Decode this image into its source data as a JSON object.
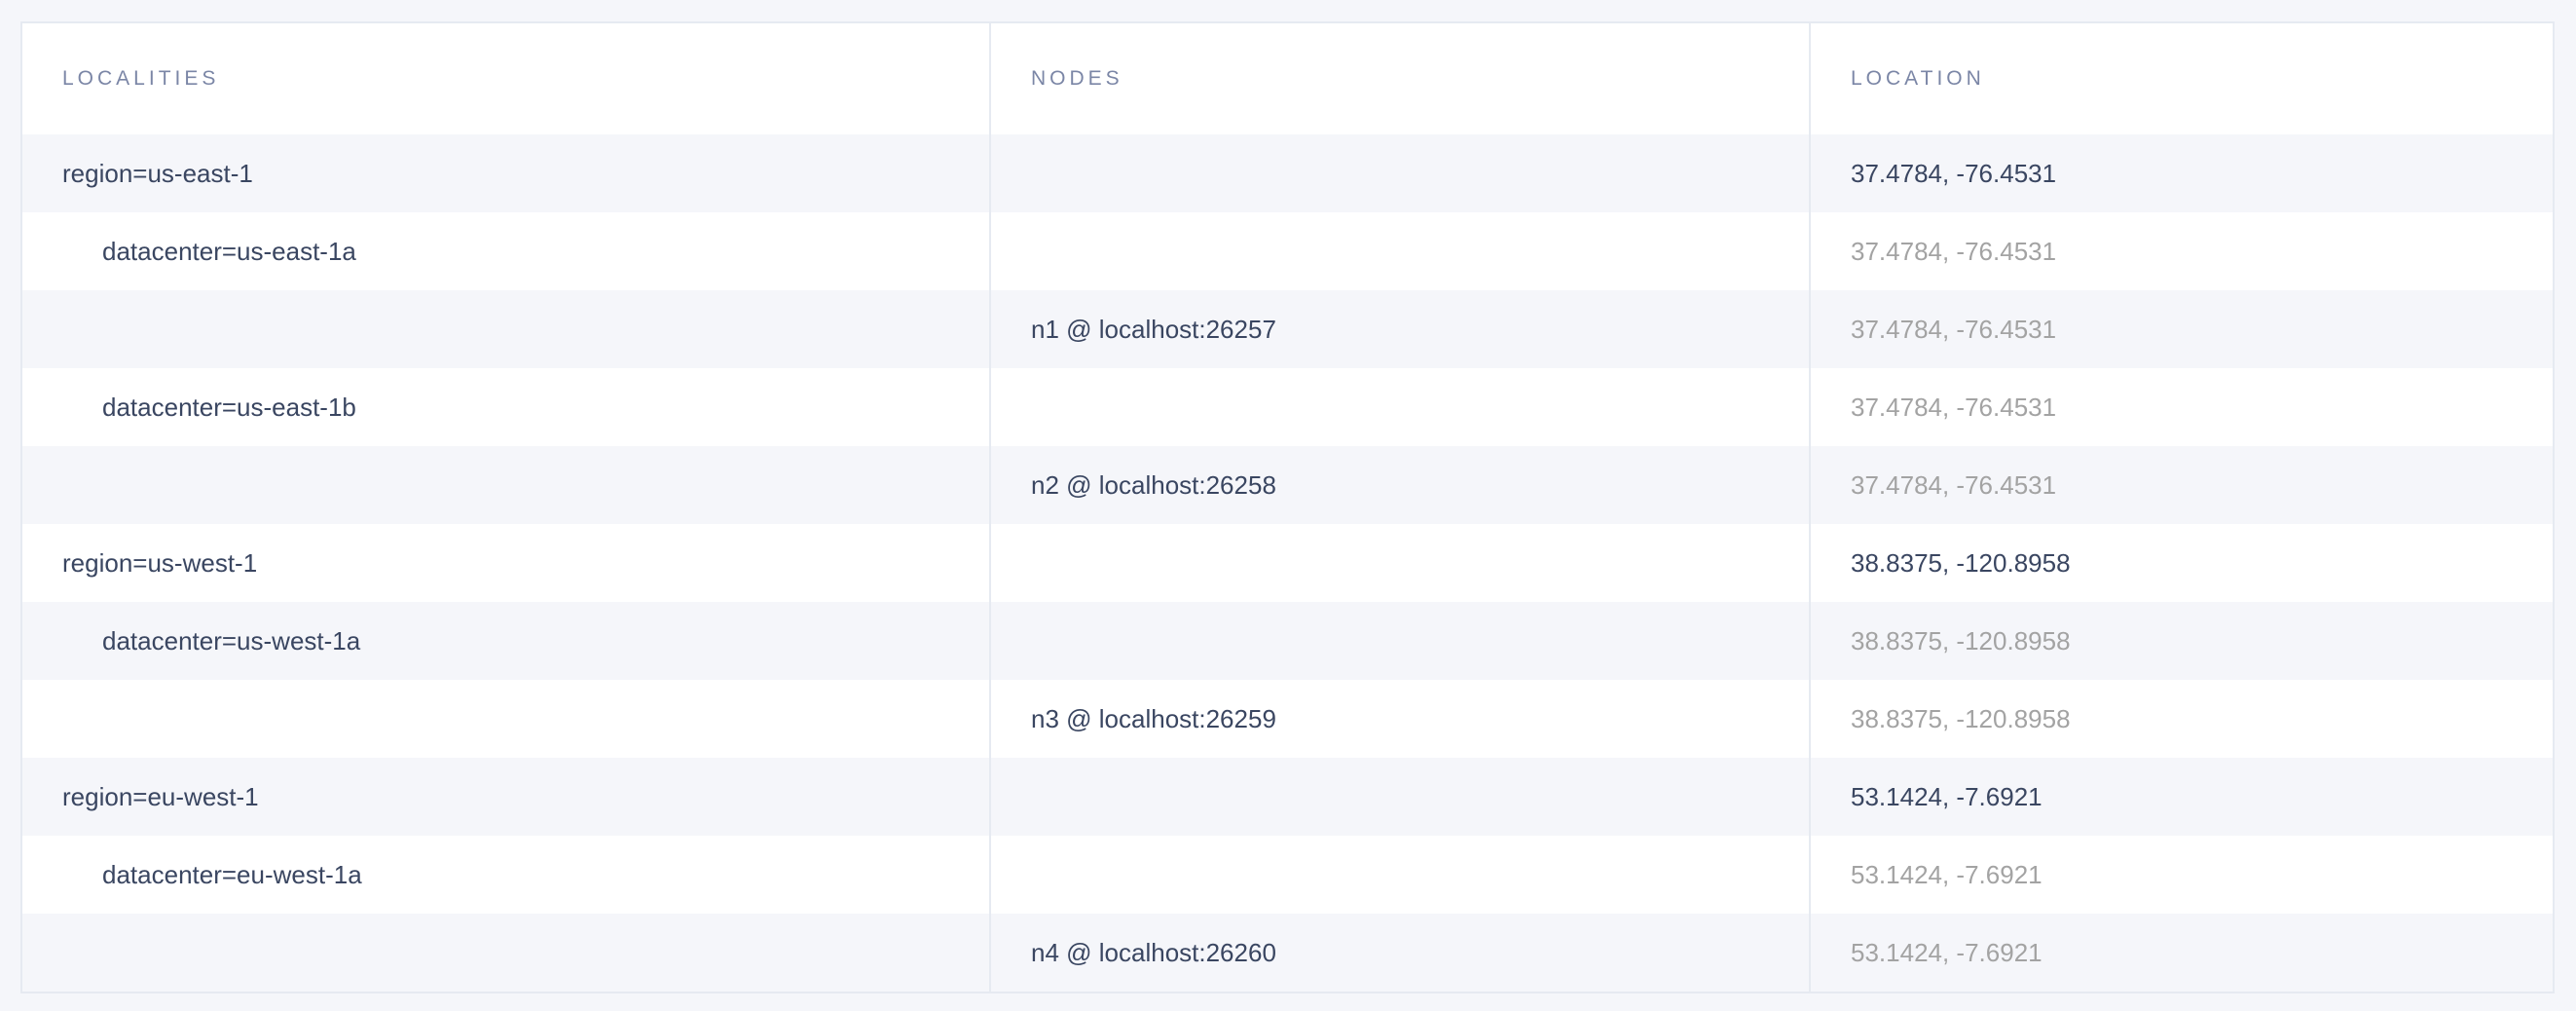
{
  "headers": {
    "localities": "LOCALITIES",
    "nodes": "NODES",
    "location": "LOCATION"
  },
  "colors": {
    "text": "#3a4661",
    "header": "#7b86a6",
    "muted": "#a3a3a3",
    "row_alt": "#f5f6fa"
  },
  "rows": [
    {
      "locality": "region=us-east-1",
      "node": "",
      "location": "37.4784, -76.4531"
    },
    {
      "locality": "datacenter=us-east-1a",
      "node": "",
      "location": "37.4784, -76.4531"
    },
    {
      "locality": "",
      "node": "n1 @ localhost:26257",
      "location": "37.4784, -76.4531"
    },
    {
      "locality": "datacenter=us-east-1b",
      "node": "",
      "location": "37.4784, -76.4531"
    },
    {
      "locality": "",
      "node": "n2 @ localhost:26258",
      "location": "37.4784, -76.4531"
    },
    {
      "locality": "region=us-west-1",
      "node": "",
      "location": "38.8375, -120.8958"
    },
    {
      "locality": "datacenter=us-west-1a",
      "node": "",
      "location": "38.8375, -120.8958"
    },
    {
      "locality": "",
      "node": "n3 @ localhost:26259",
      "location": "38.8375, -120.8958"
    },
    {
      "locality": "region=eu-west-1",
      "node": "",
      "location": "53.1424, -7.6921"
    },
    {
      "locality": "datacenter=eu-west-1a",
      "node": "",
      "location": "53.1424, -7.6921"
    },
    {
      "locality": "",
      "node": "n4 @ localhost:26260",
      "location": "53.1424, -7.6921"
    }
  ]
}
